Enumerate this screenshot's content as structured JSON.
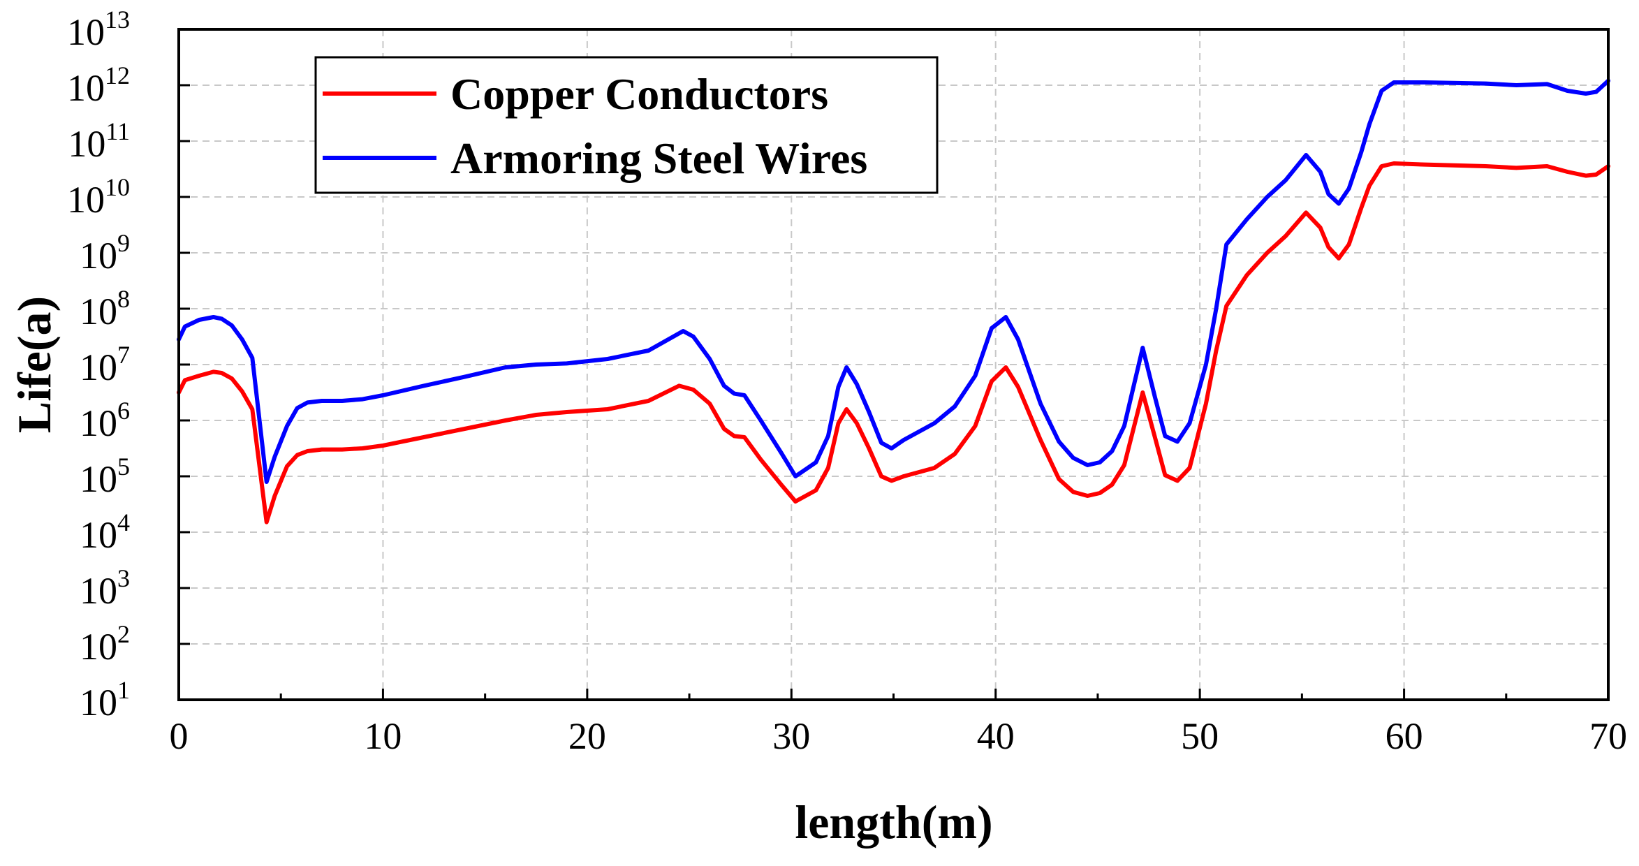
{
  "chart_data": {
    "type": "line",
    "title": "",
    "xlabel": "length(m)",
    "ylabel": "Life(a)",
    "xlim": [
      0,
      70
    ],
    "ylim_log10": [
      1,
      13
    ],
    "yscale": "log",
    "grid": true,
    "legend_position": "top-left",
    "x_ticks": [
      "0",
      "10",
      "20",
      "30",
      "40",
      "50",
      "60",
      "70"
    ],
    "y_ticks": [
      {
        "base": "10",
        "exp": "1"
      },
      {
        "base": "10",
        "exp": "2"
      },
      {
        "base": "10",
        "exp": "3"
      },
      {
        "base": "10",
        "exp": "4"
      },
      {
        "base": "10",
        "exp": "5"
      },
      {
        "base": "10",
        "exp": "6"
      },
      {
        "base": "10",
        "exp": "7"
      },
      {
        "base": "10",
        "exp": "8"
      },
      {
        "base": "10",
        "exp": "9"
      },
      {
        "base": "10",
        "exp": "10"
      },
      {
        "base": "10",
        "exp": "11"
      },
      {
        "base": "10",
        "exp": "12"
      },
      {
        "base": "10",
        "exp": "13"
      }
    ],
    "series": [
      {
        "name": "Copper Conductors",
        "color": "#ff0000",
        "points_log10": [
          [
            0,
            6.5
          ],
          [
            0.3,
            6.72
          ],
          [
            1,
            6.8
          ],
          [
            1.7,
            6.87
          ],
          [
            2.1,
            6.85
          ],
          [
            2.6,
            6.75
          ],
          [
            3.1,
            6.52
          ],
          [
            3.6,
            6.2
          ],
          [
            4.3,
            4.18
          ],
          [
            4.7,
            4.65
          ],
          [
            5.3,
            5.18
          ],
          [
            5.8,
            5.38
          ],
          [
            6.3,
            5.45
          ],
          [
            7,
            5.48
          ],
          [
            8,
            5.48
          ],
          [
            9,
            5.5
          ],
          [
            10,
            5.55
          ],
          [
            12,
            5.7
          ],
          [
            14,
            5.85
          ],
          [
            16,
            6.0
          ],
          [
            17.5,
            6.1
          ],
          [
            19,
            6.15
          ],
          [
            21,
            6.2
          ],
          [
            23,
            6.35
          ],
          [
            24.5,
            6.62
          ],
          [
            25.2,
            6.55
          ],
          [
            26,
            6.3
          ],
          [
            26.7,
            5.85
          ],
          [
            27.2,
            5.72
          ],
          [
            27.7,
            5.7
          ],
          [
            28.5,
            5.3
          ],
          [
            29.5,
            4.85
          ],
          [
            30.2,
            4.55
          ],
          [
            31.2,
            4.75
          ],
          [
            31.8,
            5.15
          ],
          [
            32.3,
            5.95
          ],
          [
            32.7,
            6.2
          ],
          [
            33.2,
            5.95
          ],
          [
            33.8,
            5.5
          ],
          [
            34.4,
            5.0
          ],
          [
            34.9,
            4.92
          ],
          [
            35.5,
            5.0
          ],
          [
            37,
            5.15
          ],
          [
            38,
            5.4
          ],
          [
            39,
            5.9
          ],
          [
            39.8,
            6.7
          ],
          [
            40.5,
            6.95
          ],
          [
            41.1,
            6.6
          ],
          [
            42.2,
            5.65
          ],
          [
            43.1,
            4.95
          ],
          [
            43.8,
            4.72
          ],
          [
            44.5,
            4.65
          ],
          [
            45.1,
            4.7
          ],
          [
            45.7,
            4.85
          ],
          [
            46.3,
            5.2
          ],
          [
            47.2,
            6.5
          ],
          [
            47.8,
            5.7
          ],
          [
            48.3,
            5.02
          ],
          [
            48.9,
            4.92
          ],
          [
            49.5,
            5.15
          ],
          [
            50.3,
            6.3
          ],
          [
            50.8,
            7.25
          ],
          [
            51.3,
            8.05
          ],
          [
            52.3,
            8.6
          ],
          [
            53.3,
            9.0
          ],
          [
            54.2,
            9.3
          ],
          [
            55.2,
            9.72
          ],
          [
            55.9,
            9.45
          ],
          [
            56.3,
            9.1
          ],
          [
            56.8,
            8.9
          ],
          [
            57.3,
            9.15
          ],
          [
            57.9,
            9.8
          ],
          [
            58.3,
            10.2
          ],
          [
            58.9,
            10.55
          ],
          [
            59.5,
            10.6
          ],
          [
            61,
            10.58
          ],
          [
            64,
            10.55
          ],
          [
            65.5,
            10.52
          ],
          [
            67,
            10.55
          ],
          [
            68,
            10.45
          ],
          [
            68.9,
            10.38
          ],
          [
            69.4,
            10.4
          ],
          [
            70,
            10.55
          ]
        ]
      },
      {
        "name": "Armoring Steel Wires",
        "color": "#0000ff",
        "points_log10": [
          [
            0,
            7.45
          ],
          [
            0.3,
            7.68
          ],
          [
            1,
            7.8
          ],
          [
            1.7,
            7.85
          ],
          [
            2.1,
            7.82
          ],
          [
            2.6,
            7.7
          ],
          [
            3.1,
            7.45
          ],
          [
            3.6,
            7.12
          ],
          [
            4.3,
            4.9
          ],
          [
            4.7,
            5.35
          ],
          [
            5.3,
            5.9
          ],
          [
            5.8,
            6.22
          ],
          [
            6.3,
            6.32
          ],
          [
            7,
            6.35
          ],
          [
            8,
            6.35
          ],
          [
            9,
            6.38
          ],
          [
            10,
            6.45
          ],
          [
            12,
            6.62
          ],
          [
            14,
            6.78
          ],
          [
            16,
            6.95
          ],
          [
            17.5,
            7.0
          ],
          [
            19,
            7.02
          ],
          [
            21,
            7.1
          ],
          [
            23,
            7.25
          ],
          [
            24.7,
            7.6
          ],
          [
            25.2,
            7.5
          ],
          [
            26,
            7.1
          ],
          [
            26.7,
            6.62
          ],
          [
            27.2,
            6.48
          ],
          [
            27.7,
            6.45
          ],
          [
            28.5,
            6.0
          ],
          [
            29.5,
            5.42
          ],
          [
            30.2,
            5.0
          ],
          [
            31.2,
            5.25
          ],
          [
            31.8,
            5.72
          ],
          [
            32.3,
            6.6
          ],
          [
            32.7,
            6.95
          ],
          [
            33.2,
            6.65
          ],
          [
            33.8,
            6.15
          ],
          [
            34.4,
            5.6
          ],
          [
            34.9,
            5.5
          ],
          [
            35.5,
            5.65
          ],
          [
            37,
            5.95
          ],
          [
            38,
            6.25
          ],
          [
            39,
            6.8
          ],
          [
            39.8,
            7.65
          ],
          [
            40.5,
            7.85
          ],
          [
            41.1,
            7.45
          ],
          [
            42.2,
            6.3
          ],
          [
            43.1,
            5.62
          ],
          [
            43.8,
            5.33
          ],
          [
            44.5,
            5.2
          ],
          [
            45.1,
            5.25
          ],
          [
            45.7,
            5.45
          ],
          [
            46.3,
            5.9
          ],
          [
            47.2,
            7.3
          ],
          [
            47.8,
            6.42
          ],
          [
            48.3,
            5.72
          ],
          [
            48.9,
            5.62
          ],
          [
            49.5,
            5.95
          ],
          [
            50.3,
            7.0
          ],
          [
            50.8,
            8.0
          ],
          [
            51.3,
            9.15
          ],
          [
            52.3,
            9.6
          ],
          [
            53.3,
            10.0
          ],
          [
            54.2,
            10.3
          ],
          [
            55.2,
            10.75
          ],
          [
            55.9,
            10.45
          ],
          [
            56.3,
            10.05
          ],
          [
            56.8,
            9.88
          ],
          [
            57.3,
            10.15
          ],
          [
            57.9,
            10.8
          ],
          [
            58.3,
            11.3
          ],
          [
            58.9,
            11.9
          ],
          [
            59.5,
            12.05
          ],
          [
            61,
            12.05
          ],
          [
            64,
            12.03
          ],
          [
            65.5,
            12.0
          ],
          [
            67,
            12.02
          ],
          [
            68,
            11.9
          ],
          [
            68.9,
            11.85
          ],
          [
            69.4,
            11.88
          ],
          [
            70,
            12.08
          ]
        ]
      }
    ]
  }
}
